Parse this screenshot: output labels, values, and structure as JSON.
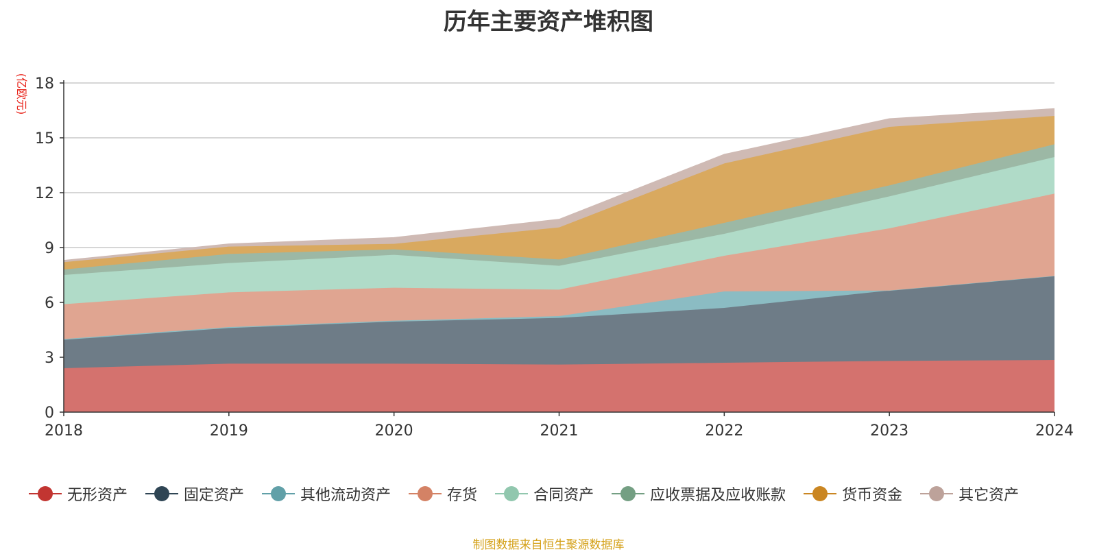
{
  "chart_data": {
    "type": "area",
    "stacked": true,
    "title": "历年主要资产堆积图",
    "unit_label": "(亿欧元)",
    "x": [
      "2018",
      "2019",
      "2020",
      "2021",
      "2022",
      "2023",
      "2024"
    ],
    "ylim": [
      0,
      18
    ],
    "yticks": [
      0,
      3,
      6,
      9,
      12,
      15,
      18
    ],
    "grid": true,
    "legend_position": "bottom",
    "series": [
      {
        "name": "无形资产",
        "color": "#c23531",
        "fill": "#d4726e",
        "values": [
          2.4,
          2.65,
          2.65,
          2.6,
          2.7,
          2.8,
          2.85
        ]
      },
      {
        "name": "固定资产",
        "color": "#2f4554",
        "fill": "#6e7c87",
        "values": [
          1.55,
          1.95,
          2.3,
          2.55,
          3.0,
          3.85,
          4.6
        ]
      },
      {
        "name": "其他流动资产",
        "color": "#61a0a8",
        "fill": "#8bbcc3",
        "values": [
          0.05,
          0.05,
          0.05,
          0.1,
          0.9,
          0.0,
          0.0
        ]
      },
      {
        "name": "存货",
        "color": "#d48265",
        "fill": "#e0a591",
        "values": [
          1.9,
          1.9,
          1.8,
          1.45,
          1.95,
          3.4,
          4.5
        ]
      },
      {
        "name": "合同资产",
        "color": "#91c7ae",
        "fill": "#b0dbc8",
        "values": [
          1.6,
          1.6,
          1.8,
          1.3,
          1.2,
          1.75,
          2.0
        ]
      },
      {
        "name": "应收票据及应收账款",
        "color": "#749f83",
        "fill": "#9cb8a5",
        "values": [
          0.3,
          0.5,
          0.3,
          0.35,
          0.6,
          0.6,
          0.7
        ]
      },
      {
        "name": "货币资金",
        "color": "#ca8622",
        "fill": "#d9a95f",
        "values": [
          0.4,
          0.4,
          0.3,
          1.75,
          3.25,
          3.2,
          1.55
        ]
      },
      {
        "name": "其它资产",
        "color": "#bda29a",
        "fill": "#cfbab4",
        "values": [
          0.1,
          0.15,
          0.35,
          0.45,
          0.5,
          0.45,
          0.4
        ]
      }
    ]
  },
  "footer": {
    "source": "制图数据来自恒生聚源数据库"
  }
}
